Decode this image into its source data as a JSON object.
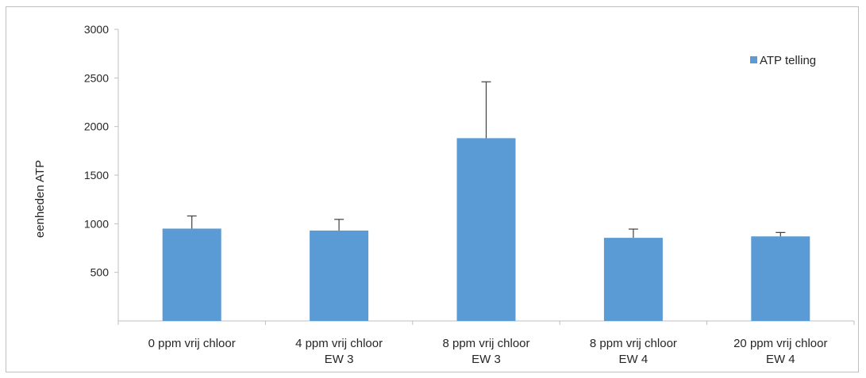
{
  "chart_data": {
    "type": "bar",
    "categories": [
      [
        "0 ppm vrij chloor"
      ],
      [
        "4 ppm vrij chloor",
        "EW 3"
      ],
      [
        "8 ppm vrij chloor",
        "EW 3"
      ],
      [
        "8 ppm vrij chloor",
        "EW 4"
      ],
      [
        "20 ppm vrij chloor",
        "EW 4"
      ]
    ],
    "series": [
      {
        "name": "ATP telling",
        "values": [
          950,
          930,
          1880,
          855,
          870
        ],
        "error_plus": [
          130,
          115,
          580,
          90,
          40
        ],
        "color": "#5b9bd5"
      }
    ],
    "title": "",
    "xlabel": "",
    "ylabel": "eenheden ATP",
    "ylim": [
      0,
      3000
    ],
    "yticks": [
      500,
      1000,
      1500,
      2000,
      2500,
      3000
    ],
    "grid": false,
    "legend_position": "top-right"
  }
}
